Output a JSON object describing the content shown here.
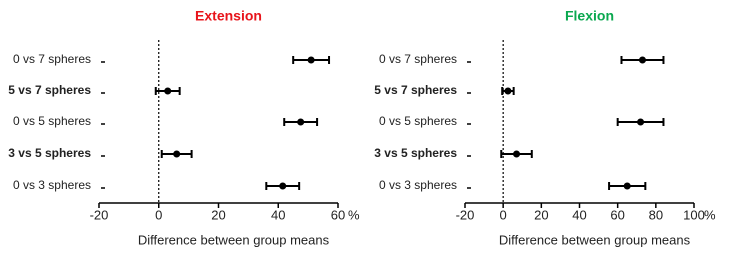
{
  "chart_data": [
    {
      "type": "errorbar",
      "title": "Extension",
      "title_color": "#e8141b",
      "categories": [
        "0 vs 7 spheres",
        "5 vs 7 spheres",
        "0 vs 5 spheres",
        "3 vs 5 spheres",
        "0 vs 3 spheres"
      ],
      "bold": [
        false,
        true,
        false,
        true,
        false
      ],
      "values": [
        51,
        3,
        47.5,
        6,
        41.5
      ],
      "errors": [
        6,
        4,
        5.5,
        5,
        5.5
      ],
      "xlim": [
        -20,
        60
      ],
      "xticks": [
        -20,
        0,
        20,
        40,
        60
      ],
      "x_unit": "%",
      "x_label": "Difference between group means",
      "color": "#000000"
    },
    {
      "type": "errorbar",
      "title": "Flexion",
      "title_color": "#0aa84f",
      "categories": [
        "0 vs 7 spheres",
        "5 vs 7 spheres",
        "0 vs 5 spheres",
        "3 vs 5 spheres",
        "0 vs 3 spheres"
      ],
      "bold": [
        false,
        true,
        false,
        true,
        false
      ],
      "values": [
        73,
        2.5,
        72,
        7,
        65
      ],
      "errors": [
        11,
        3,
        12,
        8,
        9.5
      ],
      "xlim": [
        -20,
        100
      ],
      "xticks": [
        -20,
        0,
        20,
        40,
        60,
        80,
        100
      ],
      "x_unit": "%",
      "x_label": "Difference between group means",
      "color": "#000000"
    }
  ]
}
